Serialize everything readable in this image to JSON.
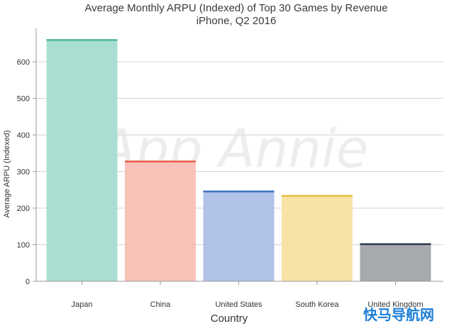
{
  "chart_data": {
    "type": "bar",
    "title": "Average Monthly ARPU (Indexed) of Top 30 Games by Revenue",
    "subtitle": "iPhone, Q2 2016",
    "xlabel": "Country",
    "ylabel": "Average ARPU (Indexed)",
    "categories": [
      "Japan",
      "China",
      "United States",
      "South Korea",
      "United Kingdom"
    ],
    "values": [
      660,
      328,
      246,
      234,
      102
    ],
    "ylim": [
      0,
      700
    ],
    "yticks": [
      0,
      100,
      200,
      300,
      400,
      500,
      600
    ],
    "grid": true,
    "legend": "none",
    "colors": {
      "fills": [
        "#a8dfd2",
        "#f8c2b8",
        "#b0c2e8",
        "#f8e3a6",
        "#a6a9ad"
      ],
      "tops": [
        "#4bb89c",
        "#e35d4a",
        "#3b6fc4",
        "#e8be3a",
        "#2e3a4a"
      ]
    }
  },
  "watermark": "App Annie",
  "corner_badge": "快马导航网"
}
